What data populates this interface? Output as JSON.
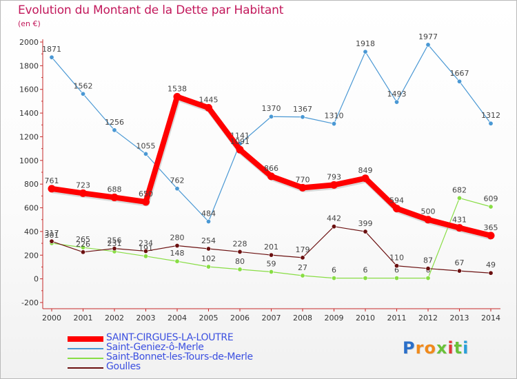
{
  "chart_data": {
    "type": "line",
    "title": "Evolution du Montant de la Dette par Habitant",
    "subtitle": "(en €)",
    "categories": [
      "2000",
      "2001",
      "2002",
      "2003",
      "2004",
      "2005",
      "2006",
      "2007",
      "2008",
      "2009",
      "2010",
      "2011",
      "2012",
      "2013",
      "2014"
    ],
    "ylim": [
      -200,
      2000
    ],
    "yticks": [
      -200,
      0,
      200,
      400,
      600,
      800,
      1000,
      1200,
      1400,
      1600,
      1800,
      2000
    ],
    "grid": false,
    "legend_position": "bottom-left",
    "series": [
      {
        "name": "SAINT-CIRGUES-LA-LOUTRE",
        "color": "#ff0000",
        "values": [
          761,
          723,
          688,
          650,
          1538,
          1445,
          1091,
          866,
          770,
          793,
          849,
          594,
          500,
          431,
          365
        ]
      },
      {
        "name": "Saint-Geniez-ô-Merle",
        "color": "#4a98d4",
        "values": [
          1871,
          1562,
          1256,
          1055,
          762,
          484,
          1141,
          1370,
          1367,
          1310,
          1918,
          1493,
          1977,
          1667,
          1312
        ]
      },
      {
        "name": "Saint-Bonnet-les-Tours-de-Merle",
        "color": "#88dd44",
        "values": [
          301,
          265,
          231,
          191,
          148,
          102,
          80,
          59,
          27,
          6,
          6,
          6,
          6,
          682,
          609
        ]
      },
      {
        "name": "Goulles",
        "color": "#6b1010",
        "values": [
          317,
          226,
          256,
          234,
          280,
          254,
          228,
          201,
          179,
          442,
          399,
          110,
          87,
          67,
          49
        ]
      }
    ]
  },
  "logo": {
    "letters": [
      "P",
      "r",
      "o",
      "x",
      "i",
      "t",
      "i"
    ],
    "colors": [
      "#2a6fc9",
      "#f08a1c",
      "#f08a1c",
      "#6ac13a",
      "#e03a3a",
      "#6ac13a",
      "#2a9fd8"
    ]
  }
}
